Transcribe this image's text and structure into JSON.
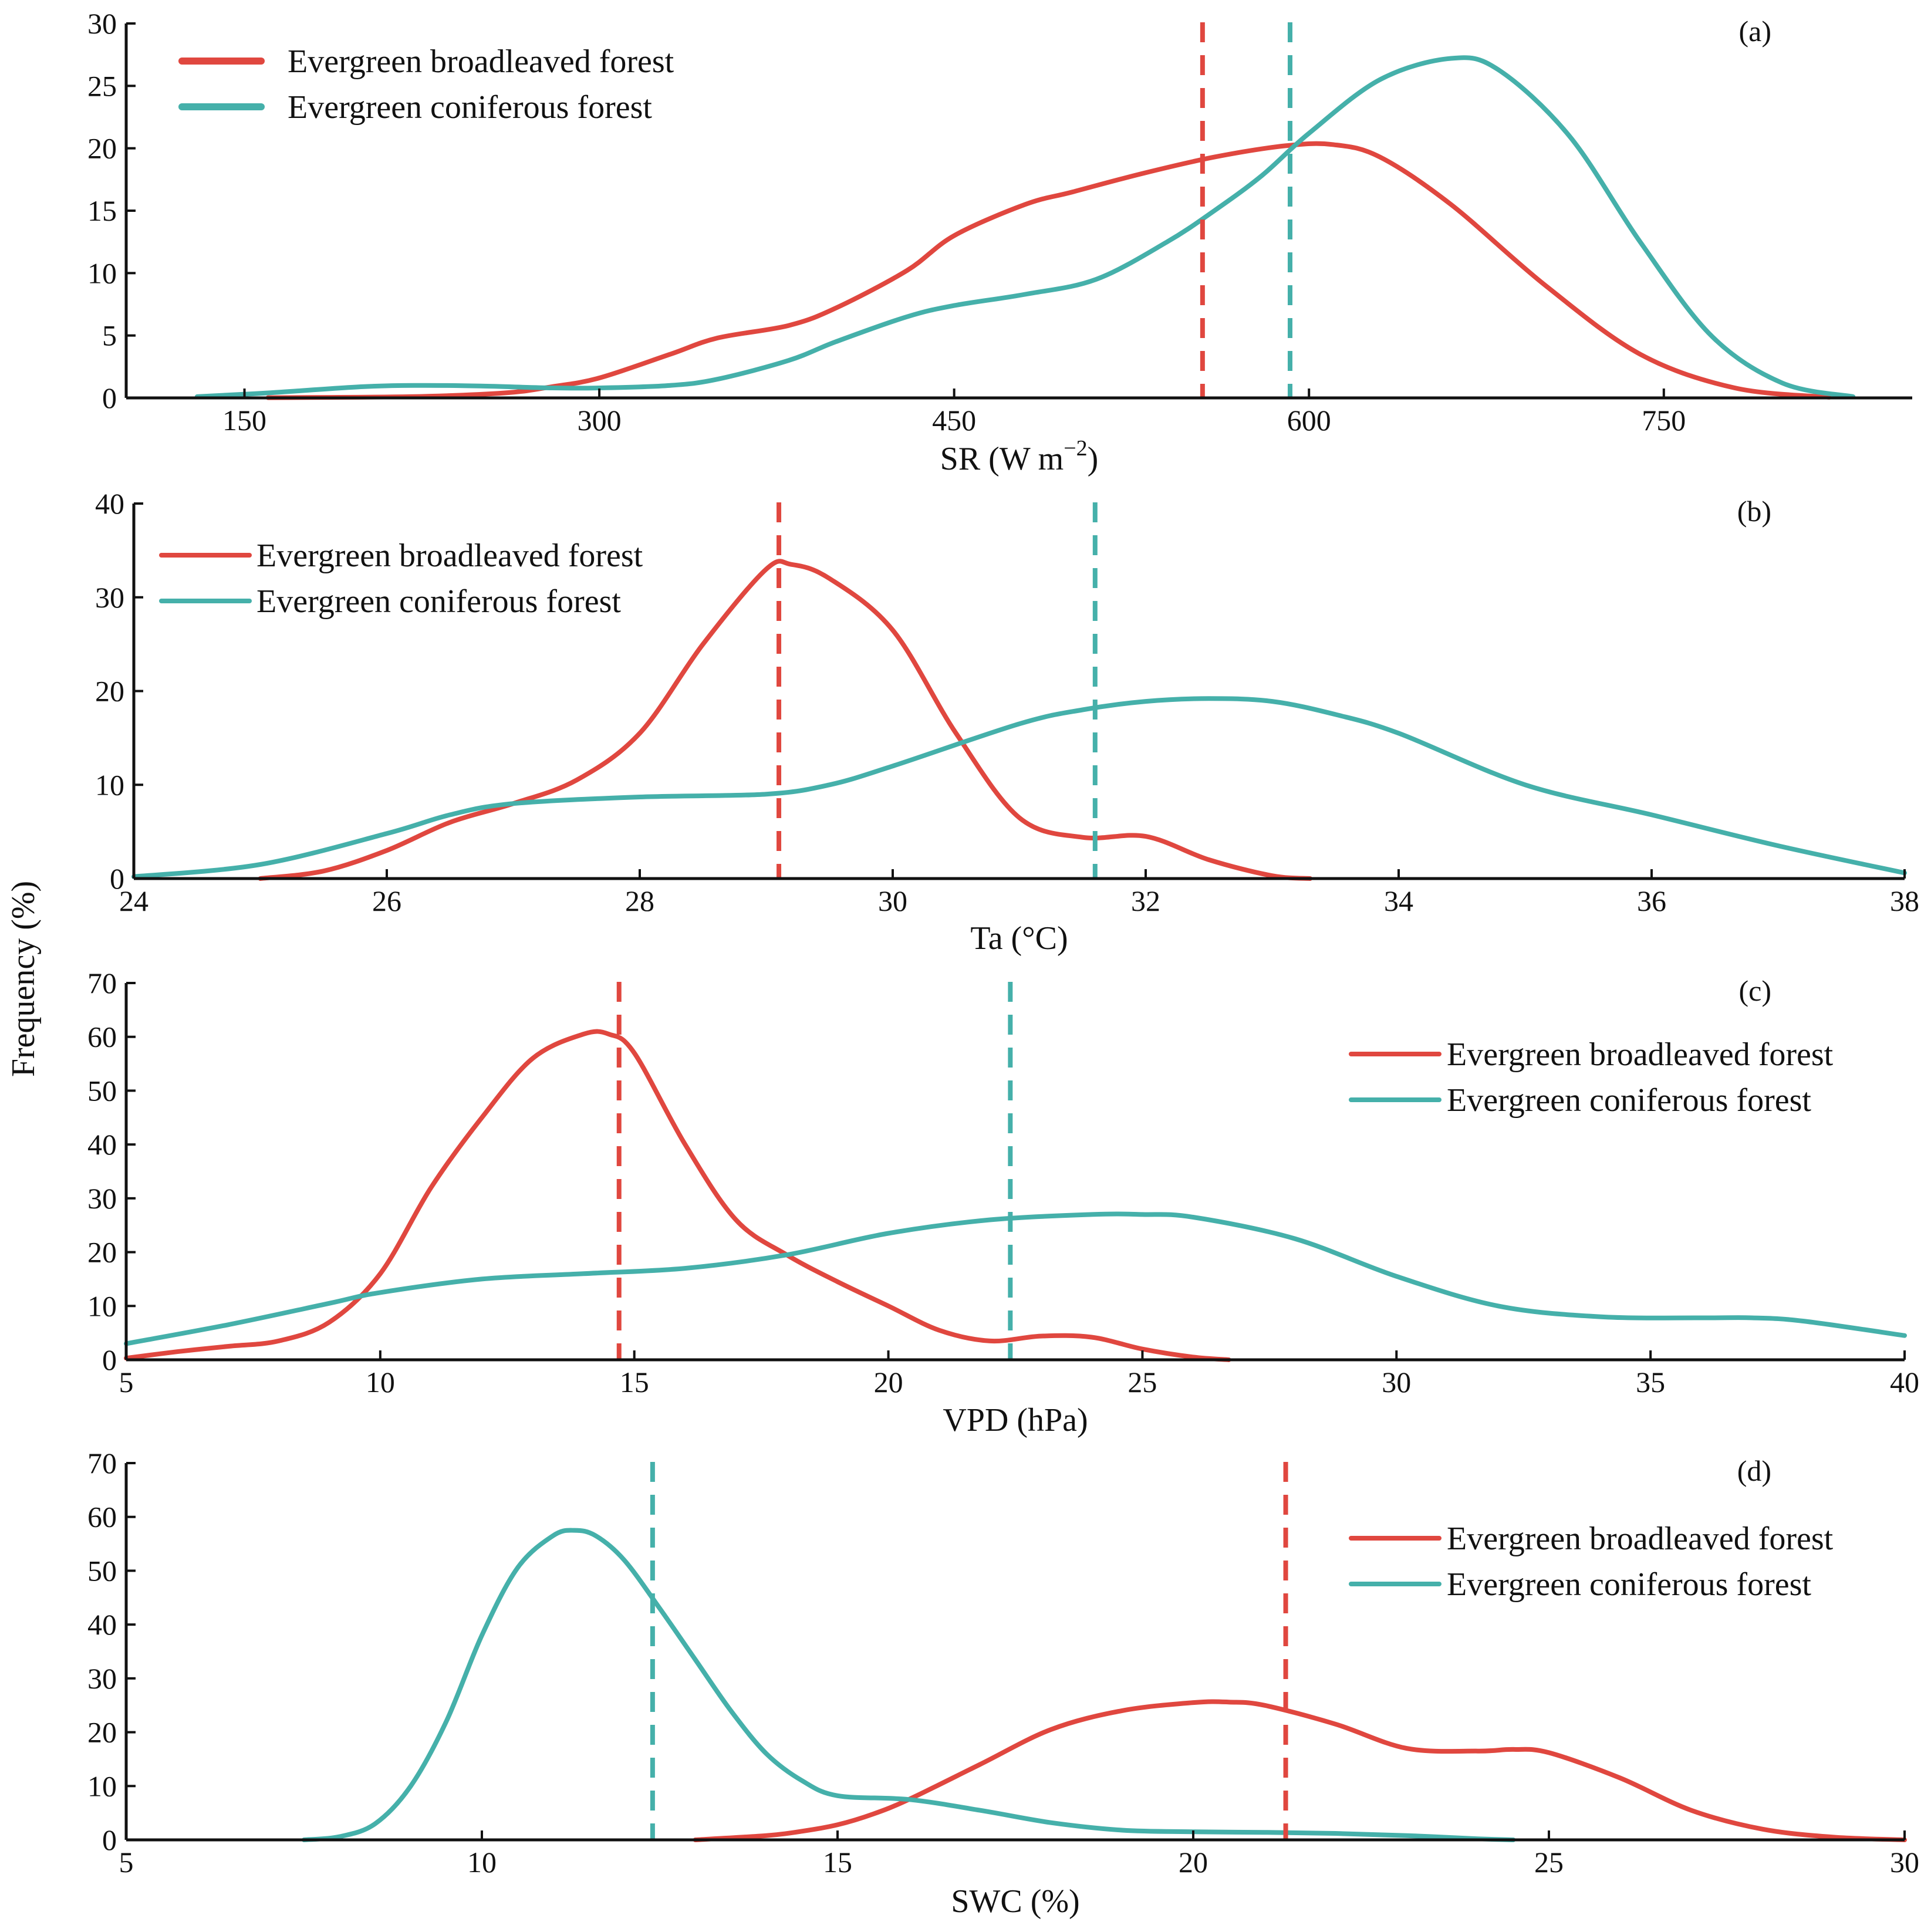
{
  "figure": {
    "ylabel": "Frequency (%)"
  },
  "colors": {
    "broadleaved": "#e0473f",
    "coniferous": "#45b0aa",
    "axis": "#111111"
  },
  "chart_data": [
    {
      "type": "line",
      "tag": "(a)",
      "xlabel": "SR (W m",
      "xlabel_sup": "−2",
      "xlabel_tail": ")",
      "xlim": [
        100,
        855
      ],
      "ylim": [
        0,
        30
      ],
      "xticks": [
        150,
        300,
        450,
        600,
        750
      ],
      "yticks": [
        0,
        5,
        10,
        15,
        20,
        25,
        30
      ],
      "legend_position": "top-left",
      "series": [
        {
          "name": "Evergreen broadleaved forest",
          "color": "#e0473f",
          "mean": 555,
          "x": [
            160,
            220,
            260,
            280,
            300,
            330,
            350,
            380,
            400,
            430,
            450,
            480,
            500,
            530,
            560,
            590,
            610,
            630,
            660,
            700,
            740,
            780,
            820
          ],
          "y": [
            0.02,
            0.1,
            0.4,
            0.9,
            1.6,
            3.5,
            4.8,
            5.8,
            7.2,
            10.2,
            13.0,
            15.5,
            16.5,
            18.0,
            19.3,
            20.2,
            20.3,
            19.3,
            15.5,
            9.0,
            3.5,
            0.8,
            0.05
          ]
        },
        {
          "name": "Evergreen coniferous forest",
          "color": "#45b0aa",
          "mean": 592,
          "x": [
            130,
            160,
            200,
            225,
            250,
            280,
            300,
            330,
            350,
            380,
            400,
            430,
            450,
            480,
            510,
            540,
            560,
            580,
            600,
            630,
            660,
            680,
            710,
            740,
            770,
            800,
            830
          ],
          "y": [
            0.1,
            0.4,
            0.9,
            1.0,
            0.95,
            0.8,
            0.8,
            1.0,
            1.5,
            3.0,
            4.5,
            6.5,
            7.4,
            8.3,
            9.5,
            12.5,
            15.0,
            17.8,
            21.2,
            25.5,
            27.2,
            26.3,
            21.0,
            12.5,
            5.0,
            1.2,
            0.1
          ]
        }
      ]
    },
    {
      "type": "line",
      "tag": "(b)",
      "xlabel": "Ta (°C)",
      "xlim": [
        24,
        38
      ],
      "ylim": [
        0,
        40
      ],
      "xticks": [
        24,
        26,
        28,
        30,
        32,
        34,
        36,
        38
      ],
      "yticks": [
        0,
        10,
        20,
        30,
        40
      ],
      "legend_position": "top-left",
      "series": [
        {
          "name": "Evergreen broadleaved forest",
          "color": "#e0473f",
          "mean": 29.1,
          "x": [
            25.0,
            25.5,
            26.0,
            26.5,
            27.0,
            27.5,
            28.0,
            28.5,
            29.0,
            29.2,
            29.5,
            30.0,
            30.5,
            31.0,
            31.5,
            32.0,
            32.5,
            33.0,
            33.3
          ],
          "y": [
            0.0,
            0.8,
            3.0,
            6.0,
            8.0,
            10.5,
            15.5,
            25.0,
            33.0,
            33.5,
            32.0,
            26.5,
            15.5,
            6.5,
            4.4,
            4.5,
            2.0,
            0.3,
            0.0
          ]
        },
        {
          "name": "Evergreen coniferous forest",
          "color": "#45b0aa",
          "mean": 31.6,
          "x": [
            24.0,
            25.0,
            26.0,
            26.5,
            27.0,
            28.0,
            29.0,
            29.5,
            30.0,
            31.0,
            31.5,
            32.0,
            32.5,
            33.0,
            33.5,
            34.0,
            35.0,
            36.0,
            37.0,
            38.0
          ],
          "y": [
            0.2,
            1.5,
            4.8,
            6.8,
            8.0,
            8.7,
            9.0,
            10.0,
            12.0,
            16.5,
            18.0,
            18.9,
            19.2,
            18.9,
            17.5,
            15.5,
            10.0,
            6.8,
            3.5,
            0.6
          ]
        }
      ]
    },
    {
      "type": "line",
      "tag": "(c)",
      "xlabel": "VPD (hPa)",
      "xlim": [
        5,
        40
      ],
      "ylim": [
        0,
        70
      ],
      "xticks": [
        5,
        10,
        15,
        20,
        25,
        30,
        35,
        40
      ],
      "yticks": [
        0,
        10,
        20,
        30,
        40,
        50,
        60,
        70
      ],
      "legend_position": "upper-right",
      "series": [
        {
          "name": "Evergreen broadleaved forest",
          "color": "#e0473f",
          "mean": 14.7,
          "x": [
            5,
            6,
            7,
            8,
            9,
            10,
            11,
            12,
            13,
            14,
            14.5,
            15,
            16,
            17,
            18,
            19,
            20,
            21,
            22,
            23,
            24,
            25,
            26,
            26.7
          ],
          "y": [
            0.3,
            1.5,
            2.5,
            3.5,
            7.0,
            16.0,
            32.0,
            45.0,
            56.0,
            60.5,
            60.5,
            57.0,
            40.0,
            26.0,
            19.5,
            14.5,
            10.0,
            5.5,
            3.5,
            4.4,
            4.2,
            2.0,
            0.5,
            0.0
          ]
        },
        {
          "name": "Evergreen coniferous forest",
          "color": "#45b0aa",
          "mean": 22.4,
          "x": [
            5,
            7,
            9,
            10,
            12,
            14,
            16,
            18,
            20,
            22,
            24,
            25,
            26,
            28,
            30,
            32,
            34,
            36,
            37,
            38,
            40
          ],
          "y": [
            3.0,
            6.5,
            10.5,
            12.5,
            15.0,
            16.0,
            17.0,
            19.5,
            23.5,
            26.0,
            27.0,
            27.0,
            26.5,
            22.5,
            15.5,
            10.0,
            8.0,
            7.8,
            7.8,
            7.2,
            4.5
          ]
        }
      ]
    },
    {
      "type": "line",
      "tag": "(d)",
      "xlabel": "SWC (%)",
      "xlim": [
        5,
        30
      ],
      "ylim": [
        0,
        70
      ],
      "xticks": [
        5,
        10,
        15,
        20,
        25,
        30
      ],
      "yticks": [
        0,
        10,
        20,
        30,
        40,
        50,
        60,
        70
      ],
      "legend_position": "upper-right",
      "series": [
        {
          "name": "Evergreen broadleaved forest",
          "color": "#e0473f",
          "mean": 21.3,
          "x": [
            13.0,
            14.0,
            14.5,
            15.0,
            15.5,
            16.0,
            17.0,
            18.0,
            19.0,
            20.0,
            20.5,
            21.0,
            22.0,
            23.0,
            24.0,
            24.5,
            25.0,
            26.0,
            27.0,
            28.0,
            29.0,
            30.0
          ],
          "y": [
            0.0,
            0.8,
            1.6,
            2.8,
            4.8,
            7.5,
            14.0,
            20.5,
            24.0,
            25.5,
            25.6,
            25.0,
            21.5,
            17.0,
            16.5,
            16.8,
            16.2,
            11.5,
            5.5,
            2.0,
            0.5,
            0.0
          ]
        },
        {
          "name": "Evergreen coniferous forest",
          "color": "#45b0aa",
          "mean": 12.4,
          "x": [
            7.5,
            8.0,
            8.5,
            9.0,
            9.5,
            10.0,
            10.5,
            11.0,
            11.3,
            11.6,
            12.0,
            12.5,
            13.0,
            13.5,
            14.0,
            14.5,
            15.0,
            16.0,
            17.0,
            18.0,
            19.0,
            20.0,
            21.0,
            22.0,
            23.0,
            24.0,
            24.5
          ],
          "y": [
            0.0,
            0.6,
            3.0,
            10.0,
            22.0,
            38.0,
            50.5,
            56.5,
            57.5,
            56.5,
            52.0,
            43.0,
            33.5,
            24.0,
            16.0,
            11.0,
            8.2,
            7.5,
            5.5,
            3.2,
            1.8,
            1.5,
            1.4,
            1.2,
            0.8,
            0.2,
            0.0
          ]
        }
      ]
    }
  ]
}
